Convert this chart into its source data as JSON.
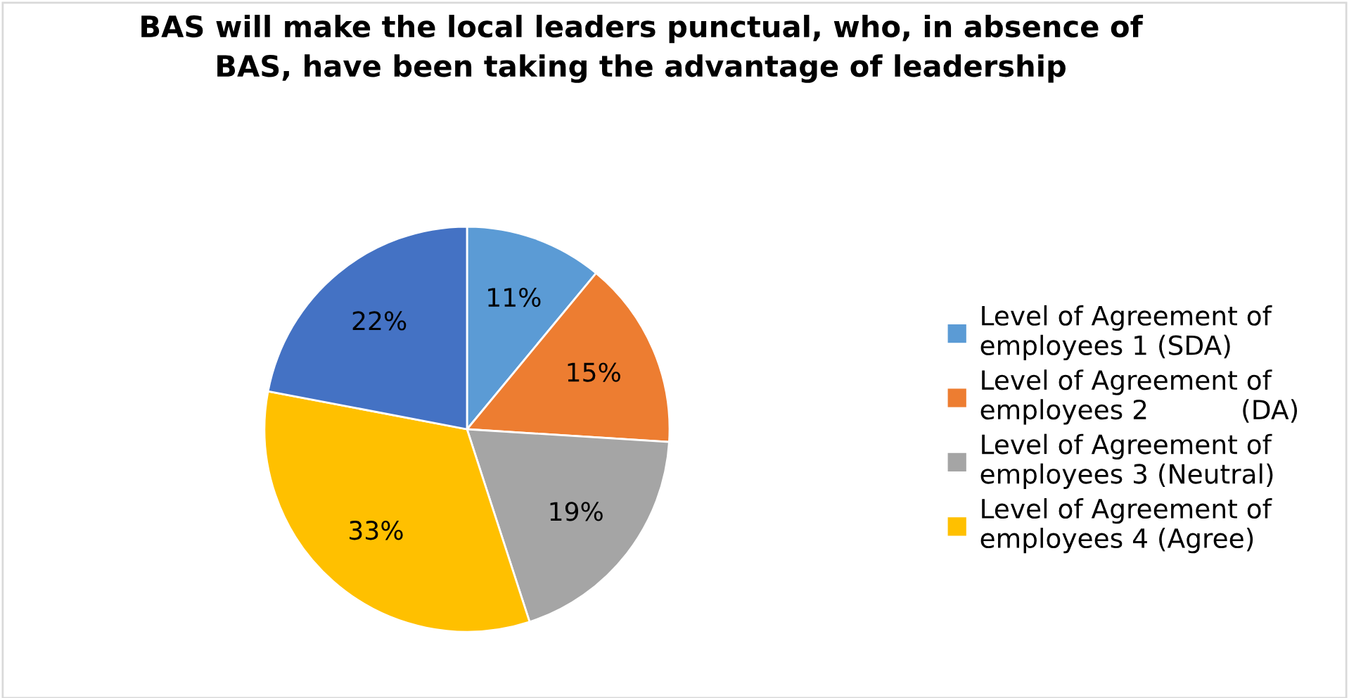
{
  "chart_data": {
    "type": "pie",
    "title": "BAS will make the local leaders punctual, who, in absence of\nBAS, have been taking the advantage of leadership",
    "categories": [
      "Level of Agreement of\nemployees 1 (SDA)",
      "Level of Agreement of\nemployees 2           (DA)",
      "Level of Agreement of\nemployees 3 (Neutral)",
      "Level of Agreement of\nemployees 4 (Agree)",
      null
    ],
    "values": [
      11,
      15,
      19,
      33,
      22
    ],
    "value_labels": [
      "11%",
      "15%",
      "19%",
      "33%",
      "22%"
    ],
    "colors": [
      "#5b9bd5",
      "#ed7d31",
      "#a5a5a5",
      "#ffc000",
      "#4472c4"
    ],
    "legend": "right"
  }
}
